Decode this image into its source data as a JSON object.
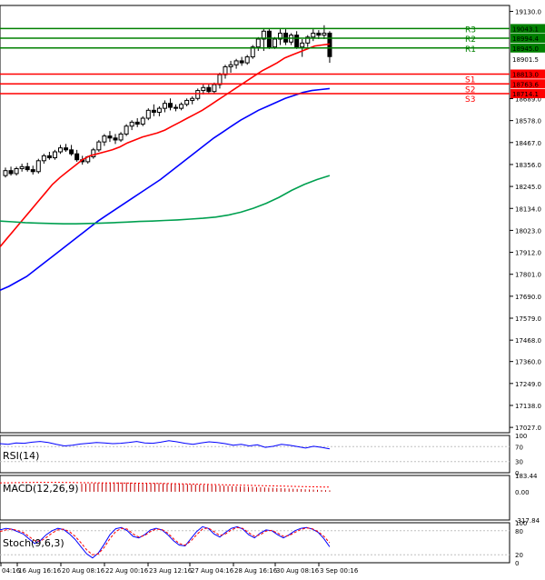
{
  "chart_data": [
    {
      "panel": "price",
      "type": "candlestick",
      "y_ticks": [
        "19130.0",
        "18689.0",
        "18578.0",
        "18467.0",
        "18356.0",
        "18245.0",
        "18134.0",
        "18023.0",
        "17912.0",
        "17801.0",
        "17690.0",
        "17579.0",
        "17468.0",
        "17360.0",
        "17249.0",
        "17138.0",
        "17027.0"
      ],
      "ylim": [
        17000,
        19160
      ],
      "x_ticks": [
        "04:16",
        "16 Aug 16:16",
        "20 Aug 08:16",
        "22 Aug 00:16",
        "23 Aug 12:16",
        "27 Aug 04:16",
        "28 Aug 16:16",
        "30 Aug 08:16",
        "3 Sep 00:16"
      ],
      "candles": [
        [
          18300,
          18340,
          18290,
          18325
        ],
        [
          18325,
          18345,
          18300,
          18310
        ],
        [
          18310,
          18345,
          18300,
          18335
        ],
        [
          18335,
          18360,
          18320,
          18345
        ],
        [
          18345,
          18365,
          18320,
          18330
        ],
        [
          18330,
          18350,
          18305,
          18320
        ],
        [
          18320,
          18385,
          18310,
          18375
        ],
        [
          18375,
          18410,
          18360,
          18400
        ],
        [
          18400,
          18420,
          18380,
          18390
        ],
        [
          18390,
          18430,
          18380,
          18420
        ],
        [
          18420,
          18455,
          18410,
          18440
        ],
        [
          18440,
          18460,
          18420,
          18430
        ],
        [
          18430,
          18455,
          18400,
          18410
        ],
        [
          18410,
          18430,
          18370,
          18380
        ],
        [
          18380,
          18400,
          18355,
          18370
        ],
        [
          18370,
          18400,
          18360,
          18395
        ],
        [
          18395,
          18440,
          18385,
          18430
        ],
        [
          18430,
          18480,
          18420,
          18470
        ],
        [
          18470,
          18510,
          18450,
          18500
        ],
        [
          18500,
          18525,
          18470,
          18490
        ],
        [
          18490,
          18510,
          18460,
          18480
        ],
        [
          18480,
          18520,
          18470,
          18510
        ],
        [
          18510,
          18560,
          18500,
          18550
        ],
        [
          18550,
          18580,
          18530,
          18570
        ],
        [
          18570,
          18590,
          18545,
          18560
        ],
        [
          18560,
          18600,
          18550,
          18590
        ],
        [
          18590,
          18640,
          18580,
          18630
        ],
        [
          18630,
          18660,
          18600,
          18620
        ],
        [
          18620,
          18650,
          18600,
          18640
        ],
        [
          18640,
          18680,
          18620,
          18665
        ],
        [
          18665,
          18690,
          18630,
          18645
        ],
        [
          18645,
          18660,
          18625,
          18640
        ],
        [
          18640,
          18670,
          18630,
          18660
        ],
        [
          18660,
          18690,
          18650,
          18680
        ],
        [
          18680,
          18700,
          18660,
          18690
        ],
        [
          18690,
          18740,
          18680,
          18730
        ],
        [
          18730,
          18760,
          18710,
          18745
        ],
        [
          18745,
          18760,
          18715,
          18725
        ],
        [
          18725,
          18770,
          18715,
          18760
        ],
        [
          18760,
          18820,
          18740,
          18810
        ],
        [
          18810,
          18860,
          18790,
          18850
        ],
        [
          18850,
          18880,
          18820,
          18860
        ],
        [
          18860,
          18890,
          18840,
          18880
        ],
        [
          18880,
          18900,
          18855,
          18870
        ],
        [
          18870,
          18910,
          18860,
          18900
        ],
        [
          18900,
          18960,
          18890,
          18950
        ],
        [
          18950,
          19000,
          18930,
          18990
        ],
        [
          18990,
          19040,
          18930,
          19030
        ],
        [
          19030,
          19040,
          18940,
          18950
        ],
        [
          18950,
          19000,
          18940,
          18990
        ],
        [
          18990,
          19040,
          18960,
          19020
        ],
        [
          19020,
          19040,
          18960,
          18975
        ],
        [
          18975,
          19020,
          18960,
          19010
        ],
        [
          19010,
          19030,
          18940,
          18950
        ],
        [
          18950,
          18990,
          18900,
          18970
        ],
        [
          18970,
          19010,
          18950,
          19000
        ],
        [
          19000,
          19040,
          18980,
          19020
        ],
        [
          19020,
          19035,
          18990,
          19010
        ],
        [
          19010,
          19060,
          18990,
          19020
        ],
        [
          19020,
          19030,
          18870,
          18901.5
        ]
      ],
      "current_price": "18901.5",
      "levels": [
        {
          "name": "R3",
          "value": 19043.1,
          "label": "19043.1",
          "color": "#008000"
        },
        {
          "name": "R2",
          "value": 18994.4,
          "label": "18994.4",
          "color": "#008000"
        },
        {
          "name": "R1",
          "value": 18945.0,
          "label": "18945.0",
          "color": "#008000"
        },
        {
          "name": "S1",
          "value": 18813.0,
          "label": "18813.0",
          "color": "#ff0000"
        },
        {
          "name": "S2",
          "value": 18763.6,
          "label": "18763.6",
          "color": "#ff0000"
        },
        {
          "name": "S3",
          "value": 18714.1,
          "label": "18714.1",
          "color": "#ff0000"
        }
      ],
      "moving_averages": [
        {
          "color": "#ff0000",
          "values": [
            17940,
            17985,
            18030,
            18075,
            18120,
            18165,
            18210,
            18255,
            18290,
            18320,
            18350,
            18380,
            18400,
            18410,
            18420,
            18430,
            18445,
            18465,
            18480,
            18495,
            18505,
            18515,
            18530,
            18550,
            18570,
            18590,
            18610,
            18630,
            18655,
            18680,
            18705,
            18730,
            18755,
            18780,
            18805,
            18830,
            18850,
            18870,
            18895,
            18910,
            18925,
            18940,
            18955,
            18960,
            18965
          ]
        },
        {
          "color": "#0000ff",
          "values": [
            17720,
            17740,
            17765,
            17790,
            17825,
            17860,
            17895,
            17930,
            17965,
            18000,
            18035,
            18070,
            18100,
            18130,
            18160,
            18190,
            18220,
            18250,
            18280,
            18315,
            18350,
            18385,
            18420,
            18455,
            18490,
            18520,
            18550,
            18580,
            18605,
            18630,
            18650,
            18670,
            18690,
            18705,
            18720,
            18730,
            18735,
            18740
          ]
        },
        {
          "color": "#00a050",
          "values": [
            18070,
            18066,
            18062,
            18060,
            18058,
            18056,
            18056,
            18058,
            18060,
            18062,
            18065,
            18068,
            18070,
            18073,
            18076,
            18080,
            18084,
            18090,
            18100,
            18115,
            18135,
            18160,
            18190,
            18225,
            18255,
            18280,
            18300
          ]
        }
      ]
    },
    {
      "panel": "RSI(14)",
      "type": "line",
      "title": "RSI(14)",
      "y_ticks": [
        "100",
        "70",
        "30",
        "0"
      ],
      "ylim": [
        0,
        100
      ],
      "series": [
        {
          "color": "#0000ff",
          "values": [
            78,
            76,
            80,
            79,
            82,
            84,
            81,
            76,
            72,
            74,
            77,
            79,
            81,
            80,
            78,
            79,
            81,
            84,
            80,
            79,
            82,
            86,
            83,
            79,
            76,
            80,
            83,
            81,
            78,
            74,
            76,
            72,
            75,
            68,
            71,
            76,
            74,
            70,
            66,
            71,
            68,
            64
          ]
        }
      ]
    },
    {
      "panel": "MACD(12,26,9)",
      "type": "bar",
      "title": "MACD(12,26,9)",
      "y_ticks": [
        "183.44",
        "0.00",
        "-317.84"
      ],
      "ylim": [
        -317.84,
        183.44
      ],
      "histogram": [
        90,
        92,
        95,
        97,
        100,
        102,
        104,
        105,
        106,
        106,
        105,
        104,
        103,
        102,
        101,
        100,
        99,
        98,
        98,
        97,
        96,
        95,
        94,
        92,
        90,
        88,
        86,
        84,
        82,
        80,
        78,
        76,
        74,
        72,
        70,
        68,
        66,
        64,
        62,
        60,
        58,
        56,
        54,
        52,
        50,
        48,
        46,
        44,
        42,
        40,
        38,
        36,
        34,
        32,
        30,
        28,
        26,
        24,
        22,
        20,
        18,
        16
      ],
      "signal": [
        100,
        101,
        103,
        104,
        105,
        106,
        106,
        106,
        105,
        104,
        103,
        102,
        101,
        100,
        99,
        98,
        97,
        96,
        95,
        94,
        93,
        92,
        90,
        88,
        86,
        84,
        82,
        80,
        78,
        76,
        74,
        72,
        70,
        68,
        66,
        64,
        62,
        60,
        58,
        56,
        54,
        52
      ]
    },
    {
      "panel": "Stoch(9,6,3)",
      "type": "line",
      "title": "Stoch(9,6,3)",
      "y_ticks": [
        "100",
        "80",
        "20",
        "0"
      ],
      "ylim": [
        0,
        100
      ],
      "series": [
        {
          "color": "#0000ff",
          "values": [
            82,
            86,
            84,
            78,
            72,
            60,
            48,
            56,
            70,
            80,
            86,
            83,
            72,
            58,
            40,
            22,
            12,
            24,
            46,
            70,
            85,
            88,
            80,
            66,
            62,
            70,
            82,
            86,
            82,
            70,
            55,
            44,
            42,
            60,
            78,
            90,
            86,
            72,
            64,
            76,
            86,
            90,
            84,
            70,
            62,
            74,
            82,
            80,
            70,
            62,
            70,
            80,
            86,
            88,
            84,
            76,
            60,
            40
          ]
        },
        {
          "color": "#ff0000",
          "values": [
            78,
            82,
            84,
            81,
            76,
            66,
            55,
            54,
            63,
            74,
            82,
            84,
            78,
            66,
            50,
            32,
            20,
            22,
            38,
            60,
            78,
            86,
            84,
            72,
            64,
            68,
            78,
            84,
            83,
            74,
            60,
            48,
            44,
            54,
            70,
            84,
            87,
            78,
            68,
            72,
            82,
            88,
            86,
            75,
            66,
            70,
            79,
            81,
            74,
            66,
            68,
            76,
            83,
            87,
            85,
            78,
            66,
            50
          ]
        }
      ]
    }
  ]
}
